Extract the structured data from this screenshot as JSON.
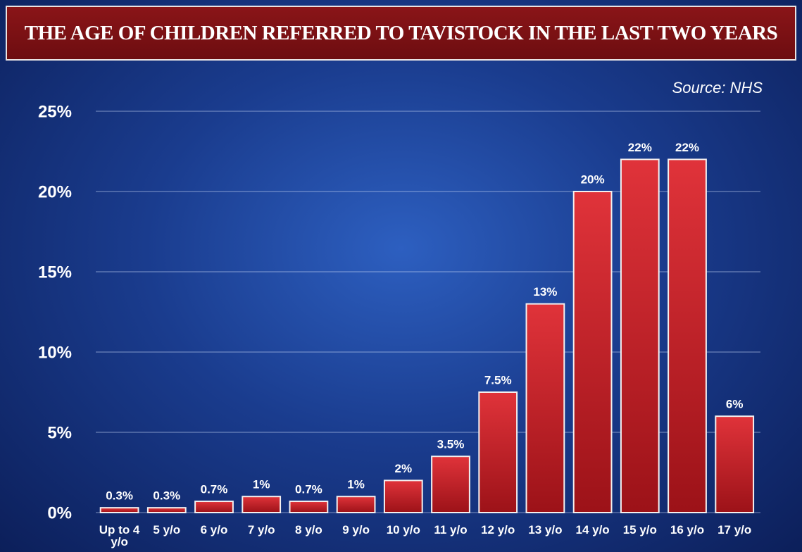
{
  "chart_data": {
    "type": "bar",
    "title": "THE AGE OF CHILDREN REFERRED TO TAVISTOCK IN THE LAST TWO YEARS",
    "source": "Source: NHS",
    "categories": [
      "Up to 4 y/o",
      "5 y/o",
      "6 y/o",
      "7 y/o",
      "8 y/o",
      "9 y/o",
      "10 y/o",
      "11 y/o",
      "12 y/o",
      "13 y/o",
      "14 y/o",
      "15 y/o",
      "16 y/o",
      "17 y/o"
    ],
    "values": [
      0.3,
      0.3,
      0.7,
      1,
      0.7,
      1,
      2,
      3.5,
      7.5,
      13,
      20,
      22,
      22,
      6
    ],
    "value_labels": [
      "0.3%",
      "0.3%",
      "0.7%",
      "1%",
      "0.7%",
      "1%",
      "2%",
      "3.5%",
      "7.5%",
      "13%",
      "20%",
      "22%",
      "22%",
      "6%"
    ],
    "color": "#c8262c",
    "ylim": [
      0,
      25
    ],
    "yticks": [
      {
        "value": 0,
        "label": "0%"
      },
      {
        "value": 5,
        "label": "5%"
      },
      {
        "value": 10,
        "label": "10%"
      },
      {
        "value": 15,
        "label": "15%"
      },
      {
        "value": 20,
        "label": "20%"
      },
      {
        "value": 25,
        "label": "25%"
      }
    ],
    "grid": true
  }
}
